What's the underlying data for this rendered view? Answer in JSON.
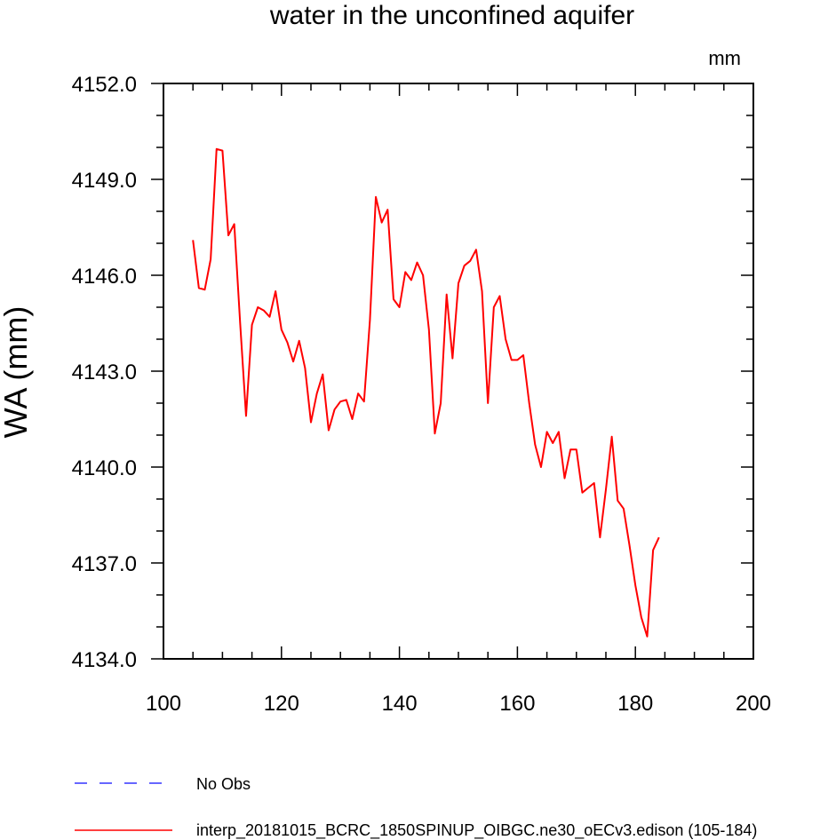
{
  "chart_data": {
    "type": "line",
    "title": "water in the unconfined aquifer",
    "units_label": "mm",
    "ylabel": "WA  (mm)",
    "xlabel": "",
    "xlim": [
      100,
      200
    ],
    "ylim": [
      4134.0,
      4152.0
    ],
    "x_ticks": [
      100,
      120,
      140,
      160,
      180,
      200
    ],
    "x_tick_labels": [
      "100",
      "120",
      "140",
      "160",
      "180",
      "200"
    ],
    "y_ticks": [
      4134.0,
      4137.0,
      4140.0,
      4143.0,
      4146.0,
      4149.0,
      4152.0
    ],
    "y_tick_labels": [
      "4134.0",
      "4137.0",
      "4140.0",
      "4143.0",
      "4146.0",
      "4149.0",
      "4152.0"
    ],
    "legend": [
      {
        "label": "No Obs",
        "color": "#3333ff",
        "style": "dashed"
      },
      {
        "label": "interp_20181015_BCRC_1850SPINUP_OIBGC.ne30_oECv3.edison (105-184)",
        "color": "#ff0000",
        "style": "solid"
      }
    ],
    "series": [
      {
        "name": "interp_20181015_BCRC_1850SPINUP_OIBGC.ne30_oECv3.edison (105-184)",
        "color": "#ff0000",
        "x": [
          105,
          106,
          107,
          108,
          109,
          110,
          111,
          112,
          113,
          114,
          115,
          116,
          117,
          118,
          119,
          120,
          121,
          122,
          123,
          124,
          125,
          126,
          127,
          128,
          129,
          130,
          131,
          132,
          133,
          134,
          135,
          136,
          137,
          138,
          139,
          140,
          141,
          142,
          143,
          144,
          145,
          146,
          147,
          148,
          149,
          150,
          151,
          152,
          153,
          154,
          155,
          156,
          157,
          158,
          159,
          160,
          161,
          162,
          163,
          164,
          165,
          166,
          167,
          168,
          169,
          170,
          171,
          172,
          173,
          174,
          175,
          176,
          177,
          178,
          179,
          180,
          181,
          182,
          183,
          184
        ],
        "values": [
          4147.1,
          4145.6,
          4145.55,
          4146.5,
          4149.95,
          4149.9,
          4147.25,
          4147.6,
          4144.5,
          4141.6,
          4144.45,
          4145.0,
          4144.9,
          4144.7,
          4145.5,
          4144.3,
          4143.9,
          4143.3,
          4143.95,
          4143.1,
          4141.4,
          4142.3,
          4142.9,
          4141.15,
          4141.8,
          4142.05,
          4142.1,
          4141.5,
          4142.3,
          4142.05,
          4144.6,
          4148.45,
          4147.65,
          4148.05,
          4145.25,
          4145.0,
          4146.1,
          4145.85,
          4146.4,
          4146.0,
          4144.3,
          4141.05,
          4142.0,
          4145.4,
          4143.4,
          4145.75,
          4146.3,
          4146.45,
          4146.8,
          4145.5,
          4142.0,
          4145.0,
          4145.35,
          4144.0,
          4143.35,
          4143.35,
          4143.5,
          4142.0,
          4140.7,
          4140.0,
          4141.1,
          4140.75,
          4141.1,
          4139.65,
          4140.55,
          4140.55,
          4139.2,
          4139.35,
          4139.5,
          4137.8,
          4139.3,
          4140.95,
          4138.95,
          4138.7,
          4137.55,
          4136.3,
          4135.3,
          4134.7,
          4137.4,
          4137.8
        ]
      }
    ]
  }
}
